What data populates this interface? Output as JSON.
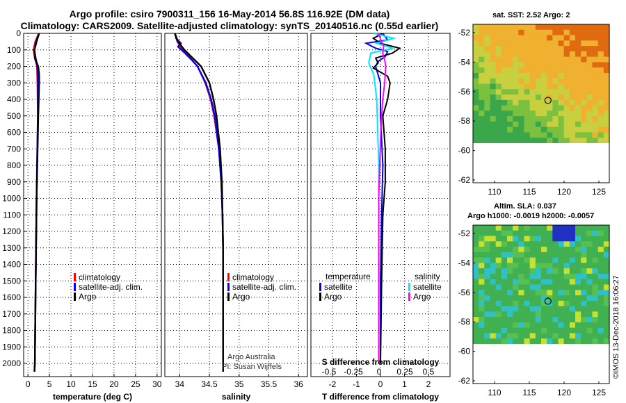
{
  "header": {
    "title_line1": "Argo profile: csiro 7900311_156 16-May-2014 56.8S 116.92E (DM data)",
    "title_line2": "Climatology: CARS2009. Satellite-adjusted climatology: synTS_20140516.nc (0.55d earlier)"
  },
  "maps": {
    "sst": {
      "title": "sat. SST: 2.52 Argo: 2",
      "yticks": [
        "-52",
        "-54",
        "-56",
        "-58",
        "-60",
        "-62"
      ],
      "xticks": [
        "110",
        "115",
        "120",
        "125"
      ],
      "colors": {
        "high": "#e06a10",
        "mid": "#f0b030",
        "low": "#3aa84a",
        "nodata": "#ffffff"
      }
    },
    "sla": {
      "title1": "Altim. SLA: 0.037",
      "title2": "Argo h1000: -0.0019 h2000: -0.0057",
      "yticks": [
        "-52",
        "-54",
        "-56",
        "-58",
        "-60",
        "-62"
      ],
      "xticks": [
        "110",
        "115",
        "120",
        "125"
      ],
      "colors": {
        "base": "#40b050",
        "cyan": "#30c0c8",
        "blue": "#2030c0",
        "yellow": "#c8e030",
        "nodata": "#ffffff"
      }
    }
  },
  "stamp": "©IMOS 13-Dec-2018 16:06:27",
  "credit": {
    "line1": "Argo Australia",
    "line2": "PI: Susan Wijffels"
  },
  "colors": {
    "climatology": "#ff0000",
    "satellite": "#0000ff",
    "argo": "#000000",
    "s_satellite": "#00e8ff",
    "s_argo": "#ff00ff"
  },
  "chart_data": [
    {
      "type": "line",
      "name": "temperature",
      "xlabel": "temperature (deg C)",
      "ylabel": "",
      "xlim": [
        -1,
        31
      ],
      "ylim": [
        2080,
        0
      ],
      "xticks": [
        0,
        5,
        10,
        15,
        20,
        25,
        30
      ],
      "yticks": [
        0,
        100,
        200,
        300,
        400,
        500,
        600,
        700,
        800,
        900,
        1000,
        1100,
        1200,
        1300,
        1400,
        1500,
        1600,
        1700,
        1800,
        1900,
        2000
      ],
      "legend": [
        "climatology",
        "satellite-adj. clim.",
        "Argo"
      ],
      "series": [
        {
          "name": "climatology",
          "color": "#ff0000",
          "depth": [
            0,
            50,
            100,
            150,
            200,
            300,
            500,
            1000,
            1500,
            2000,
            2050
          ],
          "value": [
            2.5,
            1.7,
            1.3,
            1.6,
            2.1,
            2.2,
            2.3,
            2.0,
            1.8,
            1.6,
            1.5
          ]
        },
        {
          "name": "satellite-adj. clim.",
          "color": "#0000ff",
          "depth": [
            0,
            50,
            100,
            150,
            200,
            300,
            500,
            1000,
            1500,
            2000,
            2050
          ],
          "value": [
            2.6,
            1.9,
            1.5,
            1.8,
            2.2,
            2.3,
            2.3,
            2.0,
            1.8,
            1.6,
            1.5
          ]
        },
        {
          "name": "Argo",
          "color": "#000000",
          "depth": [
            0,
            50,
            100,
            150,
            200,
            250,
            300,
            500,
            1000,
            1500,
            2000,
            2050
          ],
          "value": [
            2.6,
            2.0,
            1.5,
            1.6,
            2.4,
            2.6,
            2.6,
            2.4,
            2.0,
            1.8,
            1.6,
            1.5
          ]
        }
      ]
    },
    {
      "type": "line",
      "name": "salinity",
      "xlabel": "salinity",
      "xlim": [
        33.75,
        36.15
      ],
      "ylim": [
        2080,
        0
      ],
      "xticks": [
        34,
        34.5,
        35,
        35.5,
        36
      ],
      "xticklabels": [
        "34",
        "34.5",
        "35",
        "35.5",
        "36"
      ],
      "legend": [
        "climatology",
        "satellite-adj. clim.",
        "Argo"
      ],
      "series": [
        {
          "name": "climatology",
          "color": "#ff0000",
          "depth": [
            0,
            50,
            100,
            150,
            200,
            300,
            400,
            500,
            700,
            900,
            1100,
            1300,
            1500,
            1700,
            2000,
            2050
          ],
          "value": [
            33.92,
            33.96,
            34.05,
            34.18,
            34.3,
            34.43,
            34.52,
            34.58,
            34.66,
            34.7,
            34.72,
            34.73,
            34.73,
            34.73,
            34.73,
            34.73
          ]
        },
        {
          "name": "satellite-adj. clim.",
          "color": "#0000ff",
          "depth": [
            0,
            30,
            60,
            80,
            120,
            160,
            200,
            300,
            400,
            500,
            700,
            900,
            1100,
            1300,
            1500,
            1700,
            2000,
            2050
          ],
          "value": [
            33.92,
            33.94,
            34.02,
            33.97,
            34.09,
            34.2,
            34.3,
            34.44,
            34.53,
            34.59,
            34.66,
            34.7,
            34.72,
            34.73,
            34.73,
            34.73,
            34.73,
            34.73
          ]
        },
        {
          "name": "Argo",
          "color": "#000000",
          "depth": [
            0,
            50,
            100,
            150,
            200,
            300,
            400,
            500,
            700,
            900,
            1100,
            1300,
            1500,
            1700,
            2000,
            2050
          ],
          "value": [
            33.92,
            33.97,
            34.08,
            34.22,
            34.36,
            34.5,
            34.57,
            34.62,
            34.68,
            34.71,
            34.72,
            34.73,
            34.73,
            34.73,
            34.73,
            34.73
          ]
        }
      ]
    },
    {
      "type": "line",
      "name": "difference",
      "xlabel": "T difference from climatology",
      "top_label": "S difference from climatology",
      "xlim": [
        -2.9,
        2.9
      ],
      "ylim": [
        2080,
        0
      ],
      "xticks": [
        -2,
        -1,
        0,
        1,
        2
      ],
      "top_ticks": [
        -0.5,
        -0.25,
        0,
        0.25,
        0.5
      ],
      "top_ticklabels": [
        "-0.5",
        "-0.25",
        "0",
        "0.25",
        "0.5"
      ],
      "legend_t_title": "temperature",
      "legend_s_title": "salinity",
      "legend_t": [
        "satellite",
        "Argo"
      ],
      "legend_s": [
        "satellite",
        "Argo"
      ],
      "series": [
        {
          "name": "T satellite",
          "color": "#0000ff",
          "depth": [
            0,
            40,
            60,
            90,
            110,
            140,
            170,
            200,
            300,
            500,
            800,
            1100,
            1500,
            2000
          ],
          "value": [
            0.1,
            0.3,
            -0.6,
            -0.2,
            0.3,
            0.2,
            -0.1,
            -0.2,
            0.0,
            0.0,
            0.1,
            0.05,
            0.0,
            0.0
          ]
        },
        {
          "name": "T Argo",
          "color": "#000000",
          "depth": [
            0,
            30,
            60,
            90,
            120,
            150,
            180,
            210,
            260,
            300,
            400,
            500,
            700,
            900,
            1100,
            1500,
            2000
          ],
          "value": [
            0.1,
            -0.3,
            0.0,
            0.8,
            0.5,
            -0.2,
            -0.1,
            -0.3,
            0.3,
            0.4,
            0.3,
            0.1,
            0.2,
            0.2,
            0.1,
            0.05,
            0.0
          ]
        },
        {
          "name": "S satellite",
          "color": "#00e8ff",
          "depth": [
            0,
            30,
            60,
            90,
            120,
            180,
            250,
            400,
            600,
            800,
            1000,
            1500,
            2000
          ],
          "value": [
            -0.05,
            0.15,
            -0.02,
            0.14,
            -0.08,
            -0.1,
            -0.05,
            -0.02,
            -0.01,
            0.0,
            0.0,
            0.0,
            0.0
          ]
        },
        {
          "name": "S Argo",
          "color": "#ff00ff",
          "depth": [
            0,
            40,
            80,
            120,
            160,
            200,
            300,
            400,
            600,
            800,
            1000,
            1500,
            2000
          ],
          "value": [
            0.0,
            0.02,
            0.05,
            0.04,
            0.06,
            0.07,
            0.06,
            0.04,
            0.02,
            0.01,
            0.0,
            0.0,
            0.0
          ]
        }
      ]
    }
  ]
}
